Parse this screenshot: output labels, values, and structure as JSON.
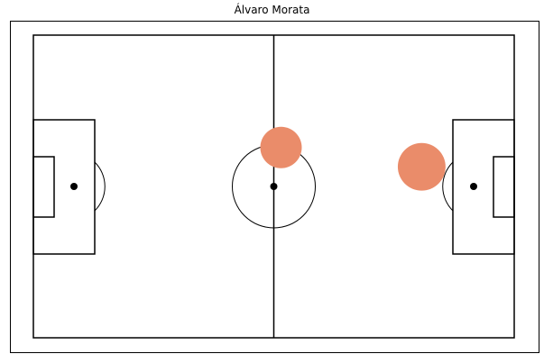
{
  "chart_data": {
    "type": "scatter",
    "title": "Álvaro Morata",
    "xlabel": "",
    "ylabel": "",
    "xlim": [
      0,
      120
    ],
    "ylim": [
      0,
      80
    ],
    "grid": false,
    "marker_color": "#ea8c6a",
    "points": [
      {
        "x": 61.8,
        "y": 50.3,
        "size": 1
      },
      {
        "x": 96.9,
        "y": 45.2,
        "size": 1.15
      }
    ]
  }
}
